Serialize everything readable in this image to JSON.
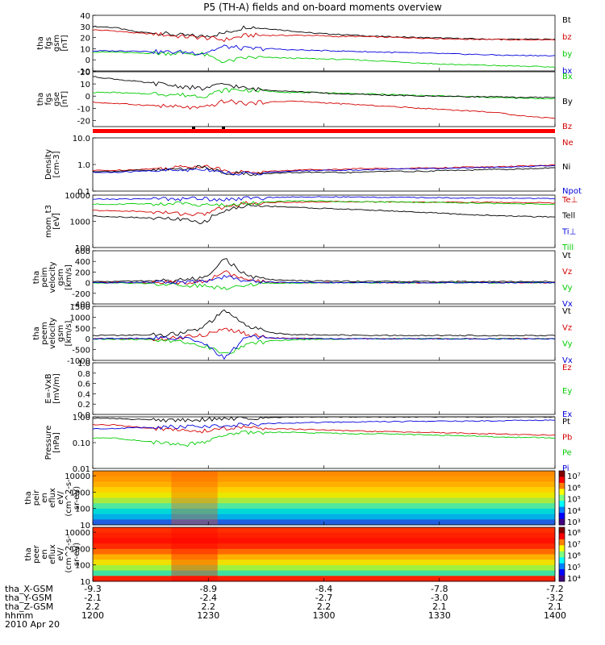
{
  "title": "P5 (TH-A) fields and on-board moments overview",
  "colors": {
    "black": "#000000",
    "red": "#d40000",
    "green": "#00cc00",
    "blue": "#0000dd"
  },
  "chart_data": [
    {
      "type": "line",
      "panel": "fgs_gsm",
      "ylabel": [
        "tha",
        "fgs",
        "gsm",
        "[nT]"
      ],
      "yticks": [
        "40",
        "30",
        "20",
        "10",
        "0",
        "-10"
      ],
      "ylim": [
        -10,
        40
      ],
      "series": [
        {
          "name": "Bt",
          "color": "black",
          "values": [
            30,
            29,
            25,
            24,
            22,
            21,
            24,
            30,
            28,
            26,
            24,
            23,
            22,
            21,
            20.5,
            20,
            19.5,
            19,
            18.5,
            18.5,
            18.5,
            18.5
          ]
        },
        {
          "name": "bz",
          "color": "red",
          "values": [
            27,
            26,
            24,
            23,
            21,
            20,
            18,
            22,
            22,
            22,
            22,
            21,
            21,
            20.5,
            20,
            19.5,
            19,
            18.5,
            18.5,
            18,
            18,
            18
          ]
        },
        {
          "name": "by",
          "color": "green",
          "values": [
            7,
            7,
            6,
            6,
            6,
            5,
            -2,
            2,
            2,
            1.5,
            1,
            0.5,
            0,
            -1,
            -2,
            -3,
            -4,
            -4.5,
            -5,
            -5.5,
            -6,
            -6.5
          ]
        },
        {
          "name": "bx",
          "color": "blue",
          "values": [
            8,
            8,
            8,
            7,
            7,
            6,
            12,
            10,
            10,
            9,
            8.5,
            8,
            7.5,
            7,
            6.5,
            6,
            5.5,
            5,
            4.5,
            4,
            4,
            3.5
          ]
        }
      ]
    },
    {
      "type": "line",
      "panel": "fgs_gse",
      "ylabel": [
        "tha",
        "fgs",
        "gse",
        "[nT]"
      ],
      "yticks": [
        "20",
        "10",
        "0",
        "-10",
        "-20"
      ],
      "ylim": [
        -25,
        20
      ],
      "series": [
        {
          "name": "Bx",
          "color": "green",
          "values": [
            3,
            3,
            2,
            2,
            1,
            0,
            5,
            5,
            4,
            3,
            3,
            2.5,
            2,
            1.5,
            1,
            0.5,
            0,
            -0.5,
            -1,
            -1.5,
            -2,
            -2
          ]
        },
        {
          "name": "By",
          "color": "black",
          "values": [
            16,
            14,
            12,
            10,
            8,
            6,
            10,
            6,
            5,
            4,
            3,
            2,
            1.5,
            1,
            0.5,
            0,
            0,
            -0.5,
            -0.5,
            -1,
            -1,
            -1
          ]
        },
        {
          "name": "Bz",
          "color": "red",
          "values": [
            -5,
            -6,
            -7,
            -8,
            -9,
            -10,
            -4,
            -6,
            -5,
            -4,
            -5,
            -6,
            -7,
            -8,
            -9,
            -10,
            -11,
            -12,
            -13,
            -15,
            -17,
            -18
          ]
        }
      ]
    },
    {
      "type": "line",
      "panel": "density",
      "log": true,
      "ylabel": [
        "Density",
        "[cm-3]"
      ],
      "yticks": [
        "10.0",
        "1.0",
        "0.1"
      ],
      "ylim": [
        0.1,
        10
      ],
      "series": [
        {
          "name": "Ne",
          "color": "red",
          "values": [
            0.6,
            0.6,
            0.65,
            0.7,
            0.8,
            0.9,
            0.6,
            0.5,
            0.55,
            0.6,
            0.65,
            0.65,
            0.7,
            0.7,
            0.7,
            0.75,
            0.75,
            0.8,
            0.8,
            0.85,
            0.9,
            0.95
          ]
        },
        {
          "name": "Ni",
          "color": "black",
          "values": [
            0.55,
            0.55,
            0.6,
            0.6,
            0.7,
            0.8,
            0.5,
            0.45,
            0.45,
            0.5,
            0.5,
            0.5,
            0.5,
            0.55,
            0.55,
            0.55,
            0.6,
            0.6,
            0.65,
            0.65,
            0.7,
            0.75
          ]
        },
        {
          "name": "Npot",
          "color": "blue",
          "values": [
            0.5,
            0.5,
            0.55,
            0.6,
            0.6,
            0.7,
            0.5,
            0.45,
            0.5,
            0.55,
            0.6,
            0.6,
            0.62,
            0.65,
            0.68,
            0.7,
            0.72,
            0.75,
            0.78,
            0.8,
            0.85,
            0.9
          ]
        }
      ]
    },
    {
      "type": "line",
      "panel": "mom_temp",
      "log": true,
      "ylabel": [
        "mom_t3",
        "[eV]"
      ],
      "yticks": [
        "10000",
        "1000",
        "100"
      ],
      "ylim": [
        100,
        10000
      ],
      "series": [
        {
          "name": "Te⊥",
          "color": "red",
          "values": [
            2600,
            2500,
            2400,
            2200,
            2000,
            1800,
            3500,
            5000,
            5200,
            5400,
            5500,
            5600,
            5600,
            5500,
            5500,
            5400,
            5400,
            5300,
            5300,
            5200,
            5100,
            5000
          ]
        },
        {
          "name": "Tell",
          "color": "black",
          "values": [
            1600,
            1500,
            1400,
            1300,
            1200,
            800,
            2500,
            4000,
            3800,
            3500,
            3200,
            3000,
            2800,
            2600,
            2400,
            2200,
            2000,
            1800,
            1700,
            1600,
            1500,
            1500
          ]
        },
        {
          "name": "Ti⊥",
          "color": "blue",
          "values": [
            7000,
            7000,
            7200,
            7300,
            7400,
            7500,
            7000,
            7500,
            8000,
            8500,
            8500,
            8500,
            8400,
            8300,
            8200,
            8000,
            7900,
            7800,
            7700,
            7600,
            7500,
            7400
          ]
        },
        {
          "name": "Till",
          "color": "green",
          "values": [
            4500,
            4500,
            4600,
            4700,
            4800,
            4500,
            4000,
            5000,
            5500,
            6000,
            6000,
            5800,
            5600,
            5500,
            5400,
            5300,
            5200,
            5000,
            4800,
            4700,
            4600,
            4500
          ]
        }
      ]
    },
    {
      "type": "line",
      "panel": "peim_velocity",
      "ylabel": [
        "tha",
        "peim",
        "velocity",
        "gsm",
        "[km/s]"
      ],
      "yticks": [
        "600",
        "400",
        "200",
        "0",
        "-200",
        "-400"
      ],
      "ylim": [
        -400,
        600
      ],
      "series": [
        {
          "name": "Vt",
          "color": "black",
          "values": [
            20,
            25,
            30,
            35,
            50,
            80,
            450,
            120,
            60,
            40,
            30,
            30,
            25,
            25,
            20,
            20,
            20,
            20,
            20,
            20,
            20,
            20
          ]
        },
        {
          "name": "Vz",
          "color": "red",
          "values": [
            0,
            5,
            0,
            -5,
            10,
            20,
            200,
            40,
            10,
            0,
            0,
            0,
            0,
            0,
            0,
            0,
            0,
            0,
            0,
            0,
            0,
            0
          ]
        },
        {
          "name": "Vy",
          "color": "green",
          "values": [
            0,
            -5,
            -10,
            -20,
            -40,
            -60,
            -100,
            -30,
            -10,
            -5,
            0,
            0,
            0,
            0,
            0,
            0,
            0,
            0,
            0,
            0,
            0,
            0
          ]
        },
        {
          "name": "Vx",
          "color": "blue",
          "values": [
            0,
            0,
            5,
            5,
            10,
            20,
            120,
            30,
            10,
            5,
            5,
            0,
            0,
            0,
            0,
            0,
            0,
            0,
            0,
            0,
            0,
            0
          ]
        }
      ]
    },
    {
      "type": "line",
      "panel": "peem_velocity",
      "ylabel": [
        "tha",
        "peem",
        "velocity",
        "gsm",
        "[km/s]"
      ],
      "yticks": [
        "1500",
        "1000",
        "500",
        "0",
        "-500",
        "-1000"
      ],
      "ylim": [
        -1000,
        1500
      ],
      "series": [
        {
          "name": "Vt",
          "color": "black",
          "values": [
            150,
            160,
            170,
            180,
            250,
            500,
            1300,
            600,
            300,
            200,
            180,
            170,
            160,
            150,
            150,
            150,
            150,
            150,
            150,
            150,
            150,
            150
          ]
        },
        {
          "name": "Vz",
          "color": "red",
          "values": [
            0,
            10,
            0,
            0,
            50,
            150,
            500,
            200,
            50,
            20,
            10,
            0,
            0,
            0,
            0,
            0,
            0,
            0,
            0,
            0,
            0,
            0
          ]
        },
        {
          "name": "Vy",
          "color": "green",
          "values": [
            0,
            -20,
            -30,
            -50,
            -100,
            -300,
            -700,
            -300,
            -100,
            -50,
            -20,
            -10,
            0,
            0,
            0,
            0,
            0,
            0,
            0,
            0,
            0,
            0
          ]
        },
        {
          "name": "Vx",
          "color": "blue",
          "values": [
            0,
            10,
            20,
            30,
            40,
            -200,
            -900,
            100,
            50,
            20,
            10,
            0,
            0,
            0,
            0,
            0,
            0,
            0,
            0,
            0,
            0,
            0
          ]
        }
      ]
    },
    {
      "type": "line",
      "panel": "e_vxb",
      "ylabel": [
        "E=-VxB",
        "[mV/m]"
      ],
      "yticks": [
        "1.0",
        "0.8",
        "0.6",
        "0.4",
        "0.2",
        "0.0"
      ],
      "ylim": [
        0,
        1
      ],
      "series": [
        {
          "name": "Ez",
          "color": "red",
          "values": []
        },
        {
          "name": "Ey",
          "color": "green",
          "values": []
        },
        {
          "name": "Ex",
          "color": "blue",
          "values": []
        }
      ]
    },
    {
      "type": "line",
      "panel": "pressure",
      "log": true,
      "ylabel": [
        "Pressure",
        "[nPa]"
      ],
      "yticks": [
        "1.00",
        "0.10",
        "0.01"
      ],
      "ylim": [
        0.01,
        1
      ],
      "series": [
        {
          "name": "Pt",
          "color": "black",
          "values": [
            0.9,
            0.85,
            0.8,
            0.75,
            0.75,
            0.8,
            0.85,
            0.9,
            0.95,
            1,
            1,
            1,
            1,
            1,
            1,
            1,
            1,
            1,
            1,
            1,
            1,
            1
          ]
        },
        {
          "name": "Pb",
          "color": "red",
          "values": [
            0.5,
            0.48,
            0.4,
            0.35,
            0.3,
            0.28,
            0.35,
            0.4,
            0.35,
            0.33,
            0.32,
            0.3,
            0.28,
            0.27,
            0.26,
            0.25,
            0.24,
            0.23,
            0.22,
            0.21,
            0.2,
            0.2
          ]
        },
        {
          "name": "Pe",
          "color": "green",
          "values": [
            0.15,
            0.15,
            0.12,
            0.1,
            0.08,
            0.1,
            0.2,
            0.25,
            0.25,
            0.25,
            0.24,
            0.23,
            0.22,
            0.22,
            0.21,
            0.2,
            0.19,
            0.18,
            0.17,
            0.16,
            0.16,
            0.15
          ]
        },
        {
          "name": "Pi",
          "color": "blue",
          "values": [
            0.35,
            0.35,
            0.38,
            0.4,
            0.42,
            0.45,
            0.45,
            0.5,
            0.55,
            0.58,
            0.6,
            0.62,
            0.63,
            0.65,
            0.66,
            0.67,
            0.68,
            0.68,
            0.7,
            0.72,
            0.74,
            0.75
          ]
        }
      ]
    },
    {
      "type": "heatmap",
      "panel": "peir_en_eflux",
      "ylabel": [
        "tha",
        "peir",
        "en",
        "eflux",
        "eV/",
        "(cm^2-s-",
        "sr-eV)"
      ],
      "yticks": [
        "10000",
        "1000",
        "100",
        "10"
      ],
      "ylim": [
        10,
        20000
      ],
      "colorbar_ticks": [
        "10⁷",
        "10⁶",
        "10⁵",
        "10⁴",
        "10³"
      ]
    },
    {
      "type": "heatmap",
      "panel": "peer_en_eflux",
      "ylabel": [
        "tha",
        "peer",
        "en",
        "eflux",
        "eV/",
        "(cm^2-s-",
        "sr-eV)"
      ],
      "yticks": [
        "10000",
        "1000",
        "100",
        "10"
      ],
      "ylim": [
        10,
        20000
      ],
      "colorbar_ticks": [
        "10⁸",
        "10⁷",
        "10⁶",
        "10⁵",
        "10⁴"
      ]
    }
  ],
  "xaxis": {
    "row_labels": [
      "tha_X-GSM",
      "tha_Y-GSM",
      "tha_Z-GSM",
      "hhmm",
      "2010 Apr 20"
    ],
    "columns": [
      [
        "-9.3",
        "-2.1",
        "2.2",
        "1200"
      ],
      [
        "-8.9",
        "-2.4",
        "2.2",
        "1230"
      ],
      [
        "-8.4",
        "-2.7",
        "2.2",
        "1300"
      ],
      [
        "-7.8",
        "-3.0",
        "2.1",
        "1330"
      ],
      [
        "-7.2",
        "-3.2",
        "2.1",
        "1400"
      ]
    ]
  }
}
